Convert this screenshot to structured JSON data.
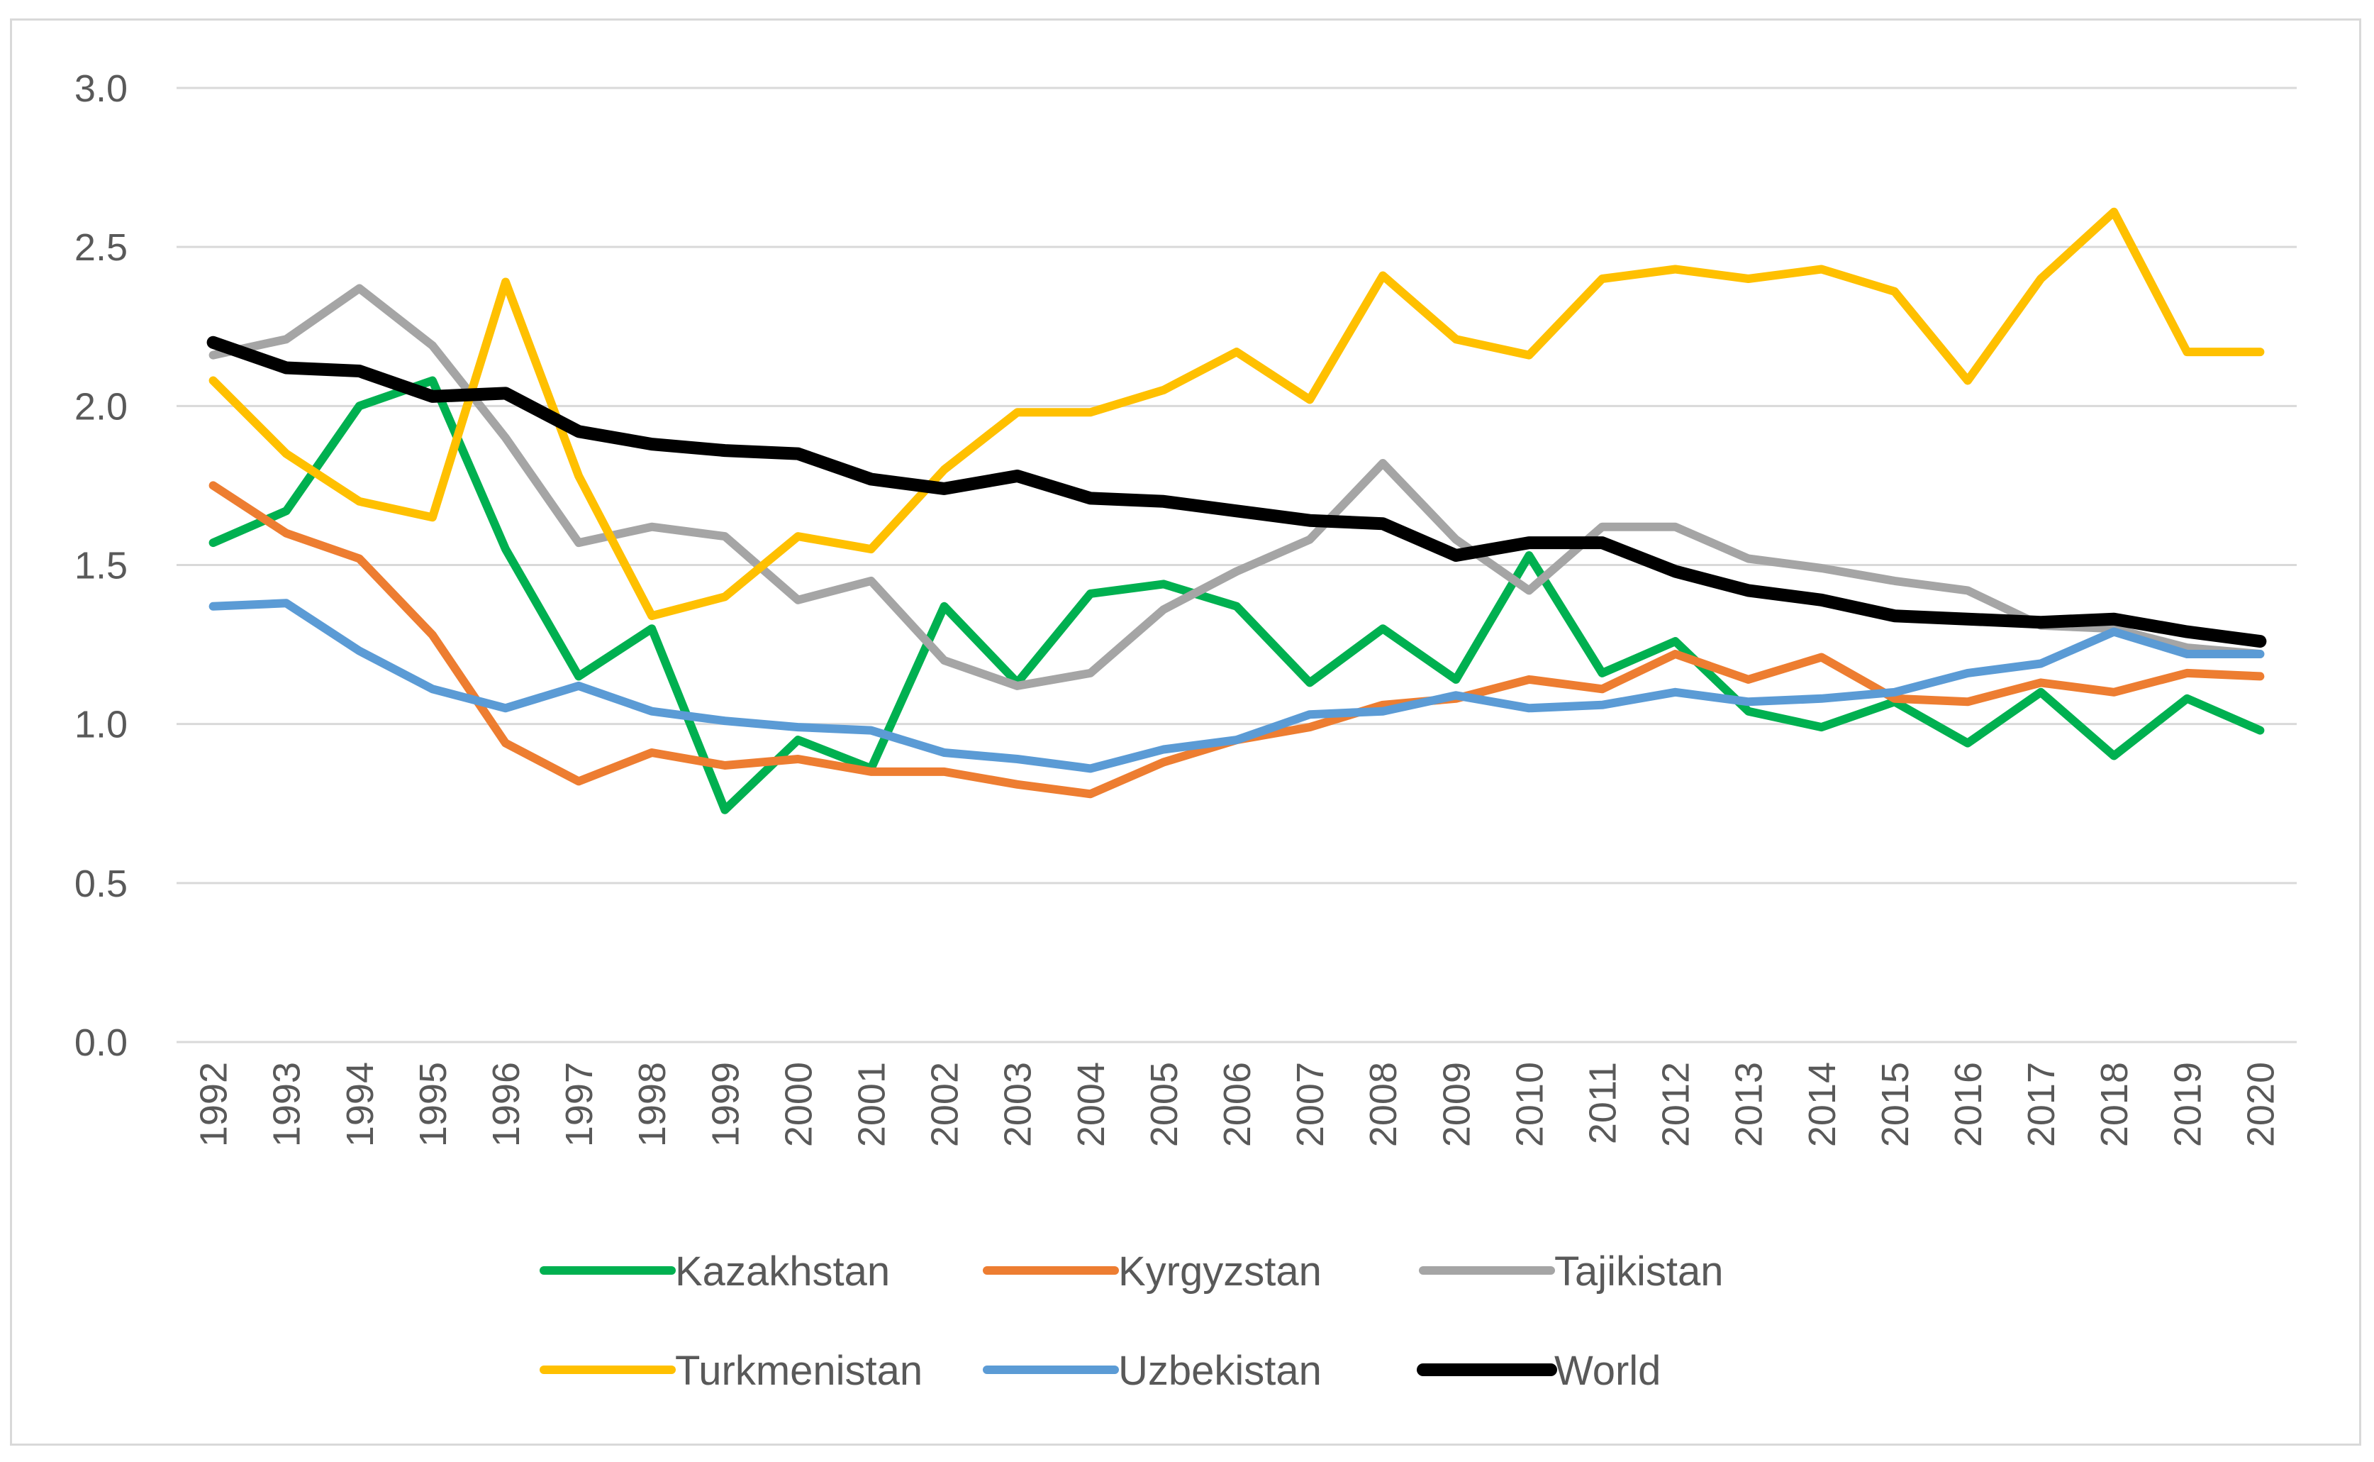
{
  "chart_data": {
    "type": "line",
    "title": "",
    "xlabel": "",
    "ylabel": "",
    "ylim": [
      0,
      3
    ],
    "yticks": [
      "0.0",
      "0.5",
      "1.0",
      "1.5",
      "2.0",
      "2.5",
      "3.0"
    ],
    "ytick_values": [
      0,
      0.5,
      1,
      1.5,
      2,
      2.5,
      3
    ],
    "grid": true,
    "legend_position": "bottom",
    "categories": [
      "1992",
      "1993",
      "1994",
      "1995",
      "1996",
      "1997",
      "1998",
      "1999",
      "2000",
      "2001",
      "2002",
      "2003",
      "2004",
      "2005",
      "2006",
      "2007",
      "2008",
      "2009",
      "2010",
      "2011",
      "2012",
      "2013",
      "2014",
      "2015",
      "2016",
      "2017",
      "2018",
      "2019",
      "2020"
    ],
    "series": [
      {
        "name": "Kazakhstan",
        "color": "#00b050",
        "values": [
          1.57,
          1.67,
          2.0,
          2.08,
          1.55,
          1.15,
          1.3,
          0.73,
          0.95,
          0.86,
          1.37,
          1.13,
          1.41,
          1.44,
          1.37,
          1.13,
          1.3,
          1.14,
          1.53,
          1.16,
          1.26,
          1.04,
          0.99,
          1.07,
          0.94,
          1.1,
          0.9,
          1.08,
          0.98
        ]
      },
      {
        "name": "Kyrgyzstan",
        "color": "#ed7d31",
        "values": [
          1.75,
          1.6,
          1.52,
          1.28,
          0.94,
          0.82,
          0.91,
          0.87,
          0.89,
          0.85,
          0.85,
          0.81,
          0.78,
          0.88,
          0.95,
          0.99,
          1.06,
          1.08,
          1.14,
          1.11,
          1.22,
          1.14,
          1.21,
          1.08,
          1.07,
          1.13,
          1.1,
          1.16,
          1.15
        ]
      },
      {
        "name": "Tajikistan",
        "color": "#a5a5a5",
        "values": [
          2.16,
          2.21,
          2.37,
          2.19,
          1.9,
          1.57,
          1.62,
          1.59,
          1.39,
          1.45,
          1.2,
          1.12,
          1.16,
          1.36,
          1.48,
          1.58,
          1.82,
          1.58,
          1.42,
          1.62,
          1.62,
          1.52,
          1.49,
          1.45,
          1.42,
          1.31,
          1.3,
          1.24,
          1.22
        ]
      },
      {
        "name": "Turkmenistan",
        "color": "#ffc000",
        "values": [
          2.08,
          1.85,
          1.7,
          1.65,
          2.39,
          1.78,
          1.34,
          1.4,
          1.59,
          1.55,
          1.8,
          1.98,
          1.98,
          2.05,
          2.17,
          2.02,
          2.41,
          2.21,
          2.16,
          2.4,
          2.43,
          2.4,
          2.43,
          2.36,
          2.08,
          2.4,
          2.61,
          2.17,
          2.17
        ]
      },
      {
        "name": "Uzbekistan",
        "color": "#5b9bd5",
        "values": [
          1.37,
          1.38,
          1.23,
          1.11,
          1.05,
          1.12,
          1.04,
          1.01,
          0.99,
          0.98,
          0.91,
          0.89,
          0.86,
          0.92,
          0.95,
          1.03,
          1.04,
          1.09,
          1.05,
          1.06,
          1.1,
          1.07,
          1.08,
          1.1,
          1.16,
          1.19,
          1.29,
          1.22,
          1.22
        ]
      },
      {
        "name": "World",
        "color": "#000000",
        "values": [
          2.2,
          2.12,
          2.11,
          2.03,
          2.04,
          1.92,
          1.88,
          1.86,
          1.85,
          1.77,
          1.74,
          1.78,
          1.71,
          1.7,
          1.67,
          1.64,
          1.63,
          1.53,
          1.57,
          1.57,
          1.48,
          1.42,
          1.39,
          1.34,
          1.33,
          1.32,
          1.33,
          1.29,
          1.26
        ]
      }
    ]
  }
}
